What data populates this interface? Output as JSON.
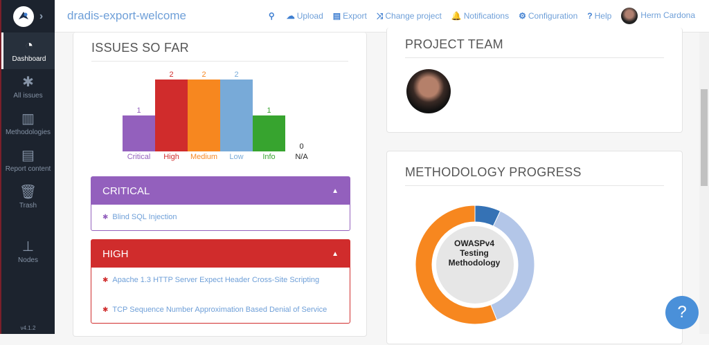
{
  "header": {
    "title": "dradis-export-welcome",
    "nav": [
      {
        "label": "Upload",
        "icon": "cloud-upload-icon"
      },
      {
        "label": "Export",
        "icon": "file-icon"
      },
      {
        "label": "Change project",
        "icon": "shuffle-icon"
      },
      {
        "label": "Notifications",
        "icon": "bell-icon"
      },
      {
        "label": "Configuration",
        "icon": "gear-icon"
      },
      {
        "label": "Help",
        "icon": "question-icon"
      }
    ],
    "user": "Herm Cardona"
  },
  "sidebar": {
    "items": [
      {
        "label": "Dashboard",
        "icon": "dashboard-icon"
      },
      {
        "label": "All issues",
        "icon": "bug-icon"
      },
      {
        "label": "Methodologies",
        "icon": "board-icon"
      },
      {
        "label": "Report content",
        "icon": "document-icon"
      },
      {
        "label": "Trash",
        "icon": "trash-icon"
      },
      {
        "label": "Nodes",
        "icon": "sitemap-icon"
      }
    ],
    "version": "v4.1.2"
  },
  "issues": {
    "title": "ISSUES SO FAR"
  },
  "chart_data": [
    {
      "type": "bar",
      "categories": [
        "Critical",
        "High",
        "Medium",
        "Low",
        "Info",
        "N/A"
      ],
      "values": [
        1,
        2,
        2,
        2,
        1,
        0
      ],
      "colors": [
        "#9360bd",
        "#d02c2c",
        "#f7871f",
        "#78aad8",
        "#37a42f",
        "#222222"
      ],
      "ylim": [
        0,
        2
      ]
    },
    {
      "type": "pie",
      "donut": true,
      "center_label": "OWASPv4 Testing Methodology",
      "values": [
        7,
        37,
        56
      ],
      "colors": [
        "#3572b5",
        "#b3c6e8",
        "#f7871f"
      ]
    }
  ],
  "panels": [
    {
      "title": "CRITICAL",
      "color": "#9360bd",
      "items": [
        "Blind SQL Injection"
      ]
    },
    {
      "title": "HIGH",
      "color": "#d02c2c",
      "items": [
        "Apache 1.3 HTTP Server Expect Header Cross-Site Scripting",
        "TCP Sequence Number Approximation Based Denial of Service"
      ]
    }
  ],
  "team": {
    "title": "PROJECT TEAM"
  },
  "methodology": {
    "title": "METHODOLOGY PROGRESS"
  },
  "help_button": "?"
}
